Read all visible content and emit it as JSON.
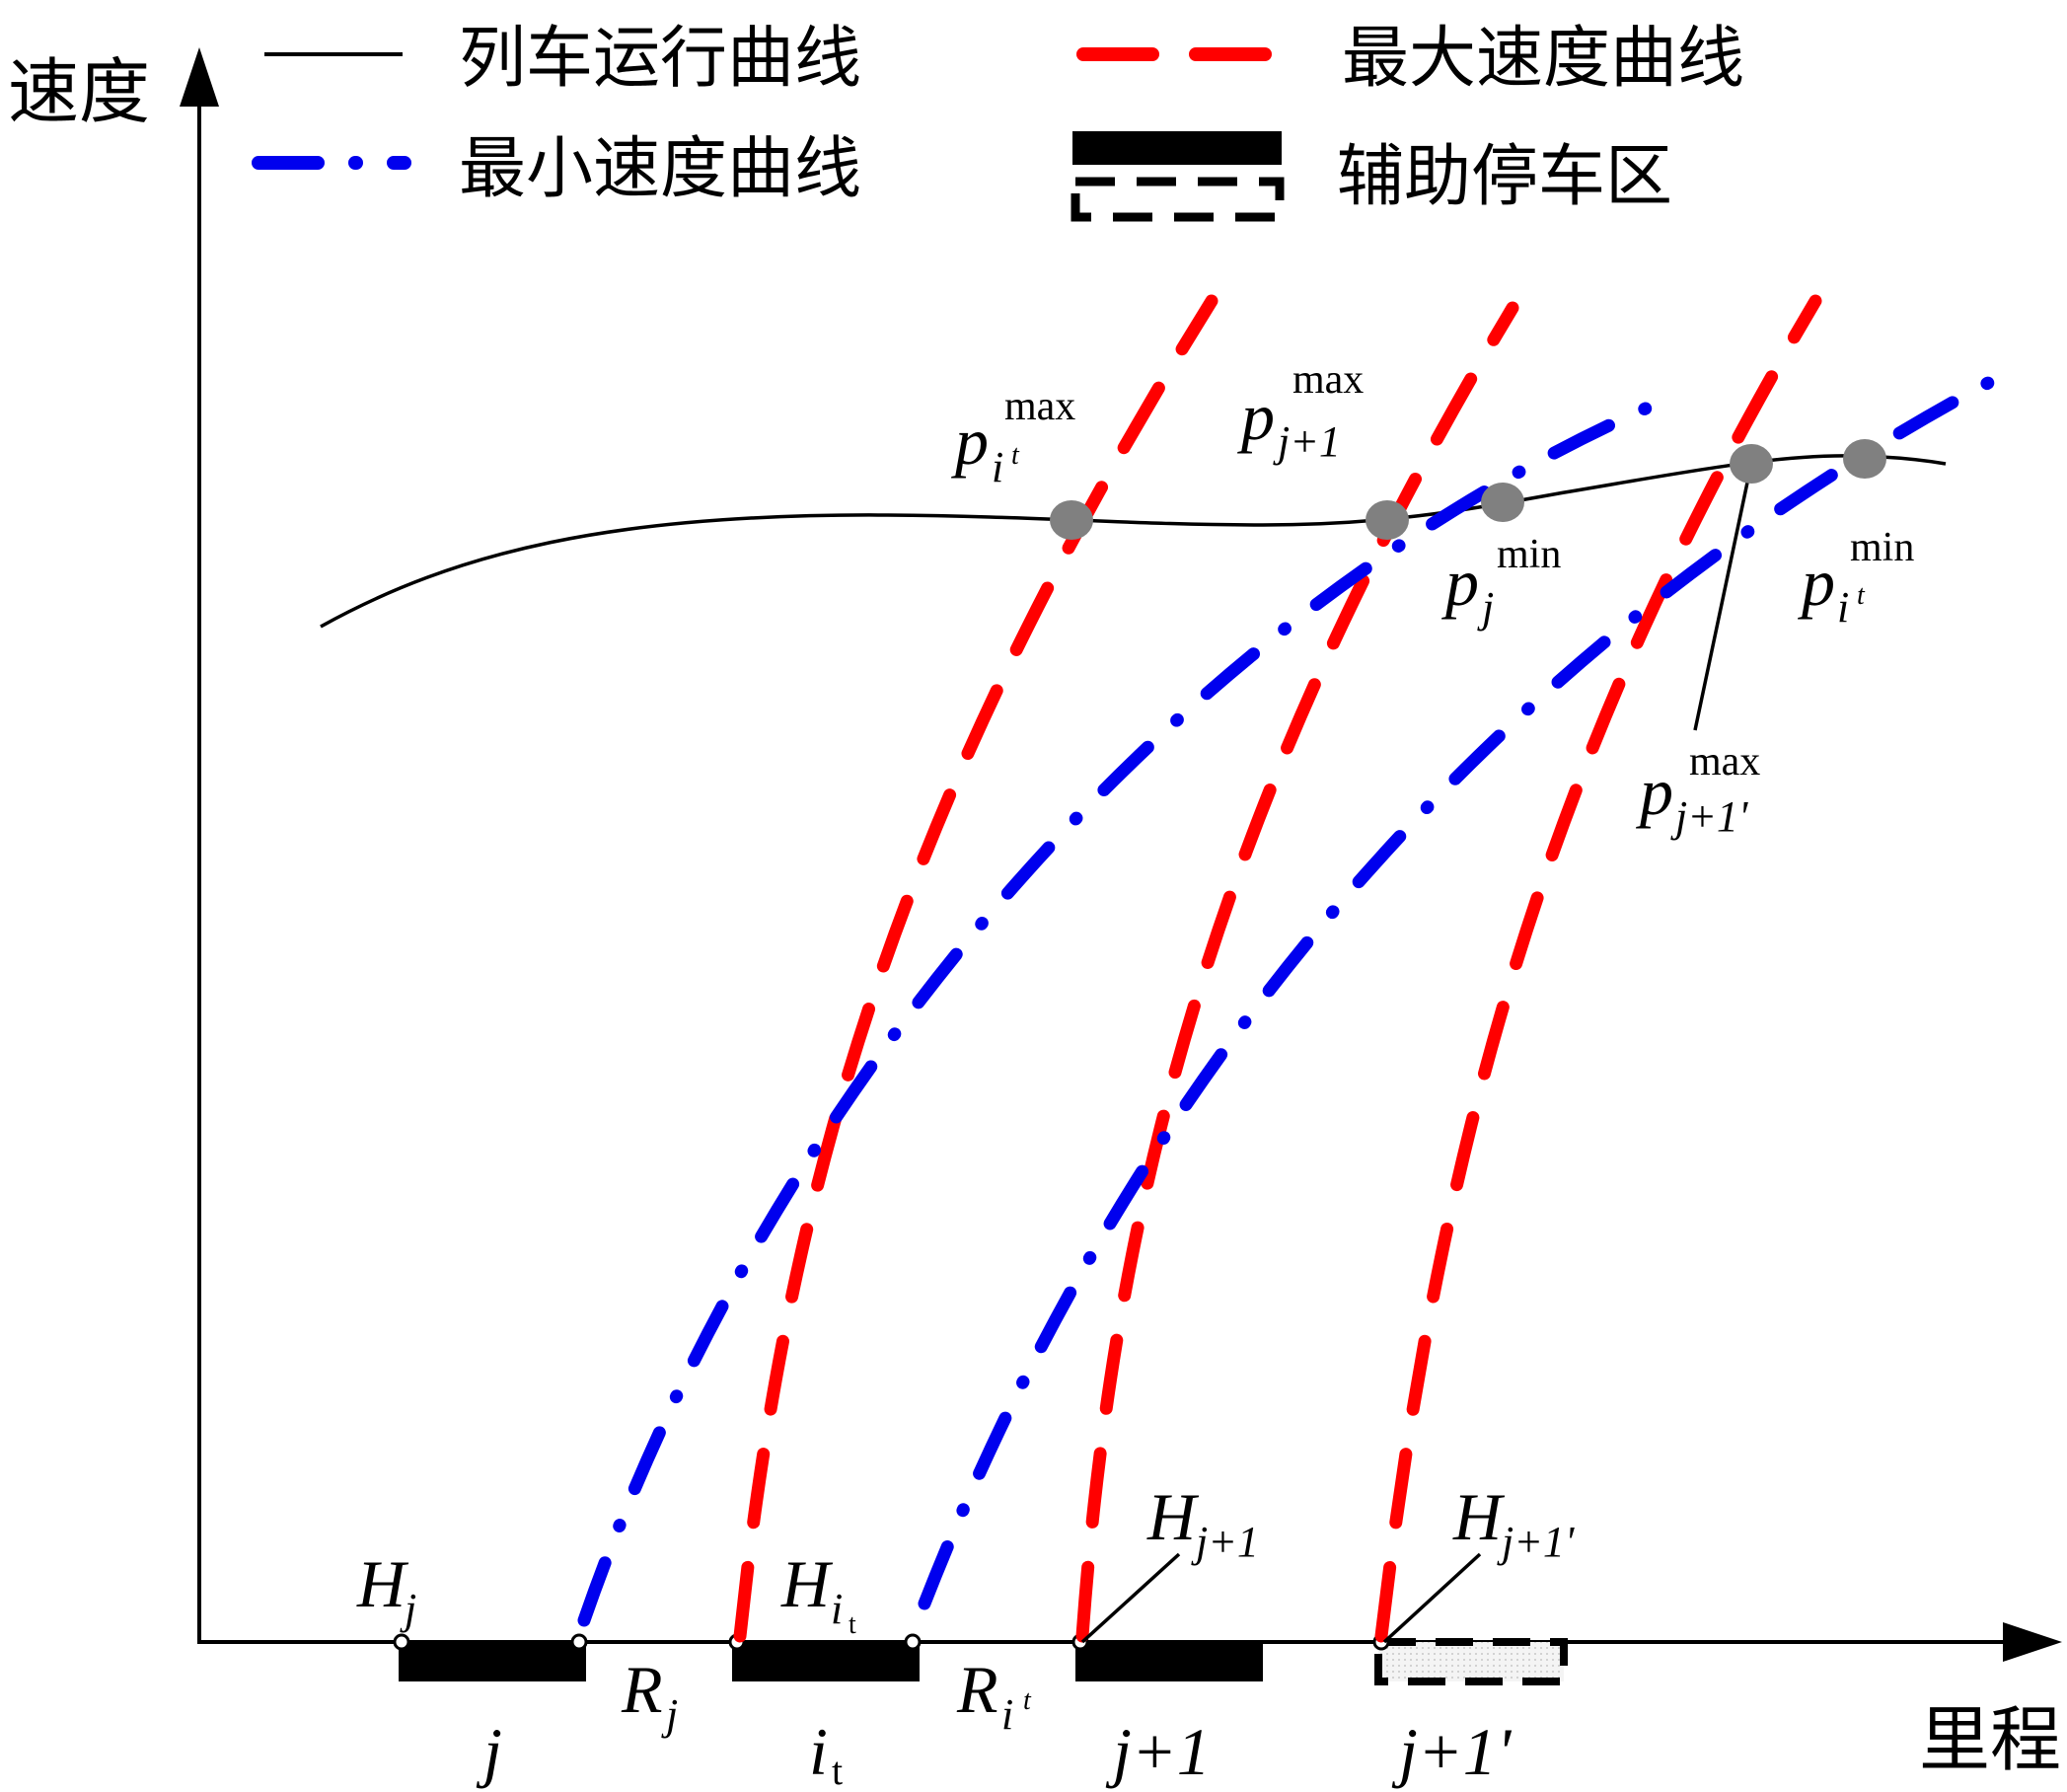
{
  "axes": {
    "y_label": "速度",
    "x_label": "里程"
  },
  "legend": {
    "run": "列车运行曲线",
    "max": "最大速度曲线",
    "min": "最小速度曲线",
    "aux": "辅助停车区"
  },
  "colors": {
    "run_curve": "#000000",
    "max_curve": "#ff0000",
    "min_curve": "#0000ee",
    "intersection": "#808080",
    "stop_block": "#000000"
  },
  "points": {
    "p_it_max": {
      "base": "p",
      "sub": "i",
      "subsup": "t",
      "sup": "max"
    },
    "p_j1_max": {
      "base": "p",
      "sub": "j+1",
      "sup": "max"
    },
    "p_j_min": {
      "base": "p",
      "sub": "j",
      "sup": "min"
    },
    "p_it_min": {
      "base": "p",
      "sub": "i",
      "subsup": "t",
      "sup": "min"
    },
    "p_j1p_max": {
      "base": "p",
      "sub": "j+1'",
      "sup": "max"
    }
  },
  "markers": {
    "H_j": {
      "base": "H",
      "sub": "j"
    },
    "H_it": {
      "base": "H",
      "sub": "i",
      "subsub": "t"
    },
    "H_j1": {
      "base": "H",
      "sub": "j+1"
    },
    "H_j1p": {
      "base": "H",
      "sub": "j+1'"
    },
    "R_j": {
      "base": "R",
      "sub": "j"
    },
    "R_it": {
      "base": "R",
      "sub": "i",
      "subsup": "t"
    }
  },
  "blocks": {
    "j": {
      "main": "j"
    },
    "it": {
      "main": "i",
      "sub": "t"
    },
    "j1": {
      "main": "j+1"
    },
    "j1p": {
      "main": "j+1'"
    }
  }
}
